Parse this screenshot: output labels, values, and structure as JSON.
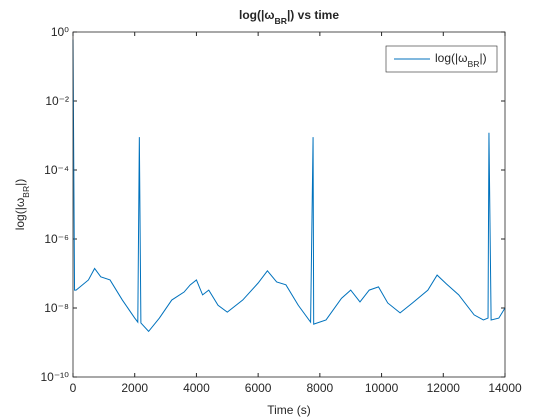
{
  "chart_data": {
    "type": "line",
    "title_parts": [
      "log(|ω",
      "BR",
      "|) vs time"
    ],
    "xlabel": "Time (s)",
    "ylabel_parts": [
      "log(|ω",
      "BR",
      "|)"
    ],
    "xlim": [
      0,
      14000
    ],
    "xticks": [
      0,
      2000,
      4000,
      6000,
      8000,
      10000,
      12000,
      14000
    ],
    "ylim": [
      1e-10,
      1
    ],
    "log_y": true,
    "yticks": [
      {
        "value": 1e-10,
        "label": "10⁻¹⁰"
      },
      {
        "value": 1e-08,
        "label": "10⁻⁸"
      },
      {
        "value": 1e-06,
        "label": "10⁻⁶"
      },
      {
        "value": 0.0001,
        "label": "10⁻⁴"
      },
      {
        "value": 0.01,
        "label": "10⁻²"
      },
      {
        "value": 1,
        "label": "10⁰"
      }
    ],
    "legend": "northeast",
    "x": [
      0,
      50,
      100,
      500,
      700,
      900,
      1200,
      1600,
      2000,
      2100,
      2150,
      2200,
      2450,
      2800,
      3200,
      3600,
      3800,
      4000,
      4200,
      4400,
      4700,
      5000,
      5500,
      6000,
      6300,
      6600,
      6900,
      7300,
      7700,
      7780,
      7800,
      8200,
      8700,
      9000,
      9300,
      9600,
      9900,
      10200,
      10600,
      11000,
      11500,
      11800,
      12100,
      12500,
      13000,
      13300,
      13450,
      13480,
      13550,
      13800,
      14000
    ],
    "series": [
      {
        "name_parts": [
          "log(|ω",
          "BR",
          "|)"
        ],
        "color": "#0072bd",
        "values": [
          0.6,
          3.3e-08,
          3.3e-08,
          6.5e-08,
          1.4e-07,
          8e-08,
          6.5e-08,
          1.7e-08,
          5.1e-09,
          3.9e-09,
          0.0009,
          3.7e-09,
          2.1e-09,
          5.1e-09,
          1.7e-08,
          2.9e-08,
          4.7e-08,
          6.5e-08,
          2.4e-08,
          3.3e-08,
          1.2e-08,
          7.6e-09,
          1.7e-08,
          5.3e-08,
          1.2e-07,
          5.7e-08,
          4.7e-08,
          1.2e-08,
          3.9e-09,
          0.0009,
          3.4e-09,
          4.5e-09,
          1.9e-08,
          3.3e-08,
          1.5e-08,
          3.3e-08,
          4.1e-08,
          1.4e-08,
          7.2e-09,
          1.4e-08,
          3.3e-08,
          9e-08,
          5e-08,
          2.4e-08,
          6.3e-09,
          4.5e-09,
          5.1e-09,
          0.0012,
          4.5e-09,
          5.1e-09,
          1e-08
        ]
      }
    ]
  }
}
